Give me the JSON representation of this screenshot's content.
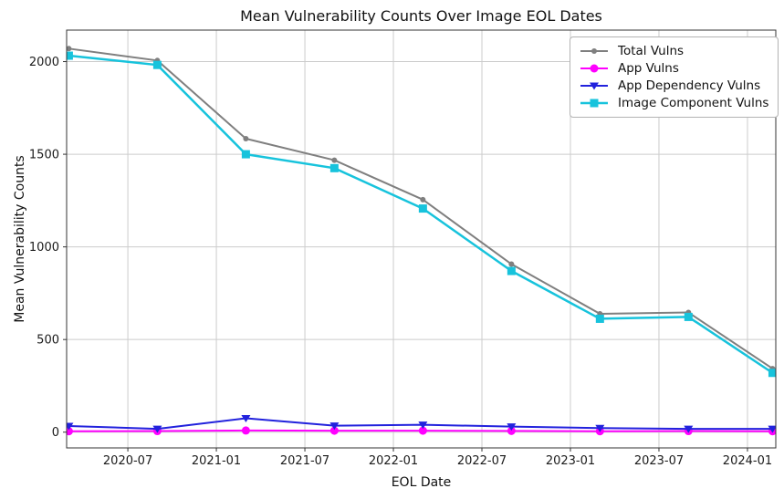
{
  "figure": {
    "title": "Mean Vulnerability Counts Over Image EOL Dates",
    "xlabel": "EOL Date",
    "ylabel": "Mean Vulnerability Counts",
    "background": "#ffffff"
  },
  "chart_data": {
    "type": "line",
    "title": "Mean Vulnerability Counts Over Image EOL Dates",
    "xlabel": "EOL Date",
    "ylabel": "Mean Vulnerability Counts",
    "x": [
      "2020-03",
      "2020-09",
      "2021-03",
      "2021-09",
      "2022-03",
      "2022-09",
      "2023-03",
      "2023-09",
      "2024-03"
    ],
    "x_months": [
      2,
      8,
      14,
      20,
      26,
      32,
      38,
      44,
      49.7
    ],
    "series": [
      {
        "name": "Total Vulns",
        "color": "#7f7f7f",
        "marker": "circle-small",
        "line_width": 2,
        "values": [
          2070,
          2006,
          1584,
          1468,
          1255,
          907,
          639,
          646,
          343
        ]
      },
      {
        "name": "App Vulns",
        "color": "#ff00ff",
        "marker": "circle",
        "line_width": 2,
        "values": [
          5,
          6,
          9,
          8,
          8,
          7,
          5,
          6,
          5
        ]
      },
      {
        "name": "App Dependency Vulns",
        "color": "#2222dd",
        "marker": "triangle-down",
        "line_width": 2,
        "values": [
          33,
          18,
          75,
          35,
          40,
          30,
          22,
          18,
          18
        ]
      },
      {
        "name": "Image Component Vulns",
        "color": "#17c3dc",
        "marker": "square",
        "line_width": 2.5,
        "values": [
          2032,
          1982,
          1500,
          1425,
          1207,
          870,
          612,
          622,
          320
        ]
      }
    ],
    "x_ticks": [
      {
        "label": "2020-07",
        "month": 6
      },
      {
        "label": "2021-01",
        "month": 12
      },
      {
        "label": "2021-07",
        "month": 18
      },
      {
        "label": "2022-01",
        "month": 24
      },
      {
        "label": "2022-07",
        "month": 30
      },
      {
        "label": "2023-01",
        "month": 36
      },
      {
        "label": "2023-07",
        "month": 42
      },
      {
        "label": "2024-01",
        "month": 48
      }
    ],
    "y_ticks": [
      0,
      500,
      1000,
      1500,
      2000
    ],
    "xlim_months": [
      1.85,
      49.92
    ],
    "ylim": [
      -85,
      2170
    ],
    "grid": true,
    "legend_position": "upper right",
    "style": {
      "grid_color": "#cccccc",
      "spine_color": "#333333",
      "legend_border_color": "#b3b3b3"
    }
  }
}
